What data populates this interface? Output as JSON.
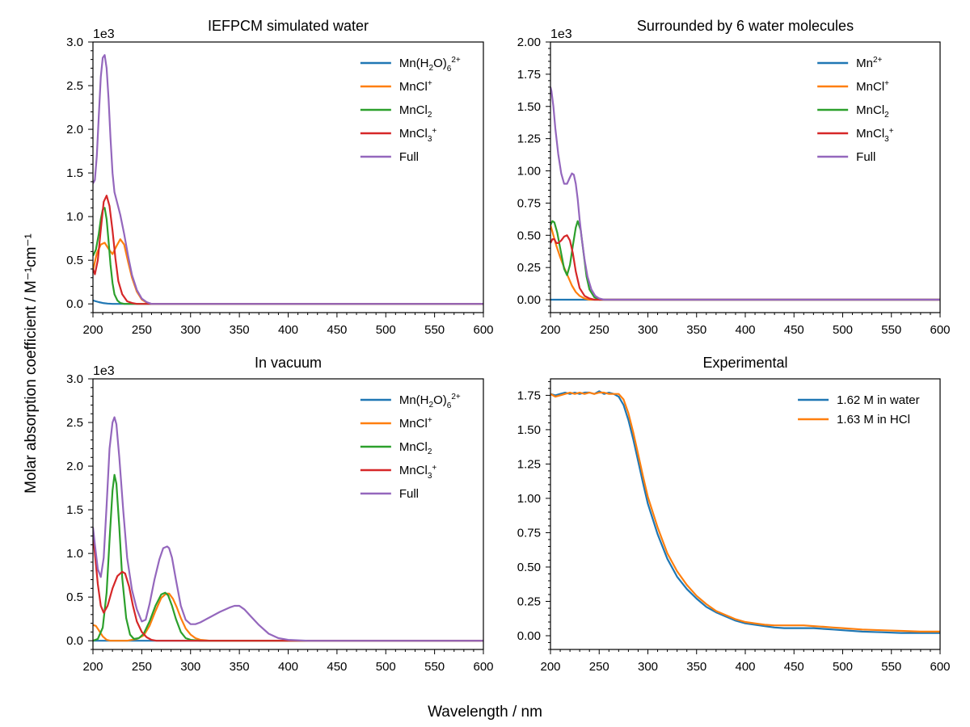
{
  "figure": {
    "ylabel": "Molar absorption coefficient / M⁻¹cm⁻¹",
    "xlabel": "Wavelength / nm"
  },
  "chart_data": [
    {
      "type": "line",
      "title": "IEFPCM simulated water",
      "xlim": [
        200,
        600
      ],
      "ylim": [
        -0.1,
        3.0
      ],
      "y_multiplier": "1e3",
      "x_ticks": [
        200,
        250,
        300,
        350,
        400,
        450,
        500,
        550,
        600
      ],
      "y_ticks": [
        0.0,
        0.5,
        1.0,
        1.5,
        2.0,
        2.5,
        3.0
      ],
      "y_tick_labels": [
        "0.0",
        "0.5",
        "1.0",
        "1.5",
        "2.0",
        "2.5",
        "3.0"
      ],
      "legend_position": "top-right",
      "series": [
        {
          "name": "Mn(H2O)6 2+",
          "color": "#1f77b4",
          "x": [
            200,
            203,
            206,
            210,
            215,
            220,
            240,
            300,
            600
          ],
          "y": [
            0.04,
            0.03,
            0.02,
            0.01,
            0.004,
            0.0,
            0.0,
            0.0,
            0.0
          ]
        },
        {
          "name": "MnCl+",
          "color": "#ff7f0e",
          "x": [
            200,
            204,
            208,
            212,
            216,
            220,
            224,
            228,
            232,
            236,
            240,
            245,
            250,
            255,
            260,
            300,
            600
          ],
          "y": [
            0.38,
            0.58,
            0.68,
            0.7,
            0.63,
            0.57,
            0.66,
            0.74,
            0.68,
            0.48,
            0.3,
            0.14,
            0.05,
            0.015,
            0.0,
            0.0,
            0.0
          ]
        },
        {
          "name": "MnCl2",
          "color": "#2ca02c",
          "x": [
            200,
            203,
            206,
            208,
            210,
            212,
            214,
            216,
            218,
            220,
            222,
            225,
            228,
            232,
            240,
            260,
            600
          ],
          "y": [
            0.55,
            0.62,
            0.8,
            0.97,
            1.08,
            1.1,
            0.97,
            0.72,
            0.45,
            0.24,
            0.11,
            0.04,
            0.01,
            0.0,
            0.0,
            0.0,
            0.0
          ]
        },
        {
          "name": "MnCl3+",
          "color": "#d62728",
          "x": [
            200,
            202,
            205,
            208,
            211,
            214,
            217,
            220,
            223,
            226,
            230,
            235,
            240,
            245,
            250,
            260,
            600
          ],
          "y": [
            0.4,
            0.34,
            0.5,
            0.85,
            1.17,
            1.24,
            1.12,
            0.84,
            0.52,
            0.26,
            0.11,
            0.03,
            0.01,
            0.0,
            0.0,
            0.0,
            0.0
          ]
        },
        {
          "name": "Full",
          "color": "#9467bd",
          "x": [
            200,
            202,
            204,
            206,
            208,
            210,
            212,
            214,
            216,
            218,
            220,
            222,
            225,
            228,
            232,
            236,
            240,
            245,
            250,
            255,
            260,
            270,
            300,
            600
          ],
          "y": [
            1.38,
            1.42,
            1.7,
            2.15,
            2.6,
            2.82,
            2.85,
            2.7,
            2.35,
            1.9,
            1.5,
            1.28,
            1.15,
            1.02,
            0.8,
            0.55,
            0.33,
            0.16,
            0.06,
            0.02,
            0.0,
            0.0,
            0.0,
            0.0
          ]
        }
      ]
    },
    {
      "type": "line",
      "title": "Surrounded by 6 water molecules",
      "xlim": [
        200,
        600
      ],
      "ylim": [
        -0.1,
        2.0
      ],
      "y_multiplier": "1e3",
      "x_ticks": [
        200,
        250,
        300,
        350,
        400,
        450,
        500,
        550,
        600
      ],
      "y_ticks": [
        0.0,
        0.25,
        0.5,
        0.75,
        1.0,
        1.25,
        1.5,
        1.75,
        2.0
      ],
      "y_tick_labels": [
        "0.00",
        "0.25",
        "0.50",
        "0.75",
        "1.00",
        "1.25",
        "1.50",
        "1.75",
        "2.00"
      ],
      "legend_position": "top-right",
      "series": [
        {
          "name": "Mn2+",
          "color": "#1f77b4",
          "x": [
            200,
            250,
            600
          ],
          "y": [
            0.0,
            0.0,
            0.0
          ]
        },
        {
          "name": "MnCl+",
          "color": "#ff7f0e",
          "x": [
            200,
            203,
            206,
            210,
            214,
            218,
            222,
            226,
            230,
            235,
            240,
            250,
            600
          ],
          "y": [
            0.58,
            0.5,
            0.42,
            0.33,
            0.25,
            0.18,
            0.11,
            0.06,
            0.03,
            0.01,
            0.0,
            0.0,
            0.0
          ]
        },
        {
          "name": "MnCl2",
          "color": "#2ca02c",
          "x": [
            200,
            202,
            204,
            207,
            210,
            214,
            217,
            220,
            223,
            226,
            228,
            231,
            234,
            237,
            240,
            245,
            250,
            260,
            600
          ],
          "y": [
            0.58,
            0.61,
            0.6,
            0.52,
            0.4,
            0.24,
            0.19,
            0.27,
            0.42,
            0.56,
            0.61,
            0.54,
            0.36,
            0.18,
            0.08,
            0.02,
            0.0,
            0.0,
            0.0
          ]
        },
        {
          "name": "MnCl3+",
          "color": "#d62728",
          "x": [
            200,
            202,
            204,
            206,
            208,
            211,
            214,
            217,
            220,
            223,
            226,
            230,
            235,
            240,
            245,
            250,
            600
          ],
          "y": [
            0.44,
            0.47,
            0.47,
            0.44,
            0.44,
            0.46,
            0.49,
            0.5,
            0.46,
            0.36,
            0.22,
            0.09,
            0.03,
            0.01,
            0.0,
            0.0,
            0.0
          ]
        },
        {
          "name": "Full",
          "color": "#9467bd",
          "x": [
            200,
            201,
            203,
            205,
            208,
            211,
            214,
            217,
            220,
            222,
            224,
            226,
            228,
            230,
            232,
            235,
            238,
            242,
            246,
            250,
            255,
            260,
            600
          ],
          "y": [
            1.65,
            1.62,
            1.5,
            1.33,
            1.13,
            0.98,
            0.9,
            0.9,
            0.95,
            0.98,
            0.97,
            0.9,
            0.78,
            0.62,
            0.48,
            0.31,
            0.18,
            0.08,
            0.03,
            0.01,
            0.0,
            0.0,
            0.0
          ]
        }
      ]
    },
    {
      "type": "line",
      "title": "In vacuum",
      "xlim": [
        200,
        600
      ],
      "ylim": [
        -0.1,
        3.0
      ],
      "y_multiplier": "1e3",
      "x_ticks": [
        200,
        250,
        300,
        350,
        400,
        450,
        500,
        550,
        600
      ],
      "y_ticks": [
        0.0,
        0.5,
        1.0,
        1.5,
        2.0,
        2.5,
        3.0
      ],
      "y_tick_labels": [
        "0.0",
        "0.5",
        "1.0",
        "1.5",
        "2.0",
        "2.5",
        "3.0"
      ],
      "legend_position": "top-right",
      "series": [
        {
          "name": "Mn(H2O)6 2+",
          "color": "#1f77b4",
          "x": [
            200,
            250,
            600
          ],
          "y": [
            0.0,
            0.0,
            0.0
          ]
        },
        {
          "name": "MnCl+",
          "color": "#ff7f0e",
          "x": [
            200,
            203,
            206,
            210,
            214,
            218,
            225,
            235,
            245,
            252,
            258,
            264,
            270,
            275,
            278,
            282,
            286,
            290,
            295,
            300,
            305,
            310,
            320,
            600
          ],
          "y": [
            0.18,
            0.17,
            0.12,
            0.05,
            0.01,
            0.0,
            0.0,
            0.0,
            0.02,
            0.06,
            0.17,
            0.34,
            0.49,
            0.54,
            0.54,
            0.48,
            0.38,
            0.26,
            0.14,
            0.07,
            0.03,
            0.01,
            0.0,
            0.0
          ]
        },
        {
          "name": "MnCl2",
          "color": "#2ca02c",
          "x": [
            200,
            205,
            210,
            214,
            217,
            220,
            222,
            224,
            227,
            230,
            234,
            238,
            242,
            247,
            252,
            258,
            264,
            270,
            274,
            277,
            281,
            285,
            290,
            295,
            300,
            310,
            600
          ],
          "y": [
            0.0,
            0.02,
            0.15,
            0.55,
            1.15,
            1.72,
            1.9,
            1.8,
            1.3,
            0.72,
            0.26,
            0.07,
            0.02,
            0.03,
            0.08,
            0.22,
            0.4,
            0.53,
            0.55,
            0.52,
            0.4,
            0.25,
            0.1,
            0.03,
            0.01,
            0.0,
            0.0
          ]
        },
        {
          "name": "MnCl3+",
          "color": "#d62728",
          "x": [
            200,
            202,
            205,
            208,
            211,
            215,
            220,
            225,
            230,
            233,
            237,
            241,
            245,
            250,
            255,
            260,
            265,
            270,
            280,
            600
          ],
          "y": [
            1.22,
            1.0,
            0.65,
            0.4,
            0.32,
            0.4,
            0.6,
            0.74,
            0.79,
            0.77,
            0.62,
            0.4,
            0.22,
            0.1,
            0.04,
            0.01,
            0.0,
            0.0,
            0.0,
            0.0
          ]
        },
        {
          "name": "Full",
          "color": "#9467bd",
          "x": [
            200,
            202,
            205,
            208,
            211,
            214,
            217,
            220,
            222,
            224,
            227,
            231,
            235,
            240,
            245,
            250,
            254,
            258,
            263,
            268,
            272,
            276,
            278,
            281,
            285,
            290,
            295,
            300,
            305,
            310,
            320,
            330,
            340,
            345,
            350,
            355,
            360,
            370,
            380,
            390,
            400,
            420,
            450,
            500,
            600
          ],
          "y": [
            1.3,
            1.1,
            0.82,
            0.73,
            0.95,
            1.55,
            2.2,
            2.5,
            2.56,
            2.48,
            2.1,
            1.5,
            0.95,
            0.58,
            0.36,
            0.22,
            0.24,
            0.42,
            0.7,
            0.93,
            1.06,
            1.08,
            1.06,
            0.95,
            0.7,
            0.4,
            0.24,
            0.19,
            0.19,
            0.21,
            0.27,
            0.33,
            0.38,
            0.4,
            0.4,
            0.36,
            0.3,
            0.18,
            0.08,
            0.03,
            0.01,
            0.0,
            0.0,
            0.0,
            0.0
          ]
        }
      ]
    },
    {
      "type": "line",
      "title": "Experimental",
      "xlim": [
        200,
        600
      ],
      "ylim": [
        -0.1,
        1.87
      ],
      "x_ticks": [
        200,
        250,
        300,
        350,
        400,
        450,
        500,
        550,
        600
      ],
      "y_ticks": [
        0.0,
        0.25,
        0.5,
        0.75,
        1.0,
        1.25,
        1.5,
        1.75
      ],
      "y_tick_labels": [
        "0.00",
        "0.25",
        "0.50",
        "0.75",
        "1.00",
        "1.25",
        "1.50",
        "1.75"
      ],
      "legend_position": "top-right",
      "series": [
        {
          "name": "1.62 M in water",
          "color": "#1f77b4",
          "x": [
            200,
            205,
            210,
            215,
            220,
            225,
            230,
            235,
            240,
            245,
            250,
            255,
            260,
            265,
            270,
            275,
            280,
            285,
            290,
            295,
            300,
            310,
            320,
            330,
            340,
            350,
            360,
            370,
            380,
            390,
            400,
            410,
            420,
            430,
            440,
            450,
            460,
            470,
            480,
            490,
            500,
            520,
            540,
            560,
            580,
            600
          ],
          "y": [
            1.76,
            1.75,
            1.76,
            1.77,
            1.76,
            1.77,
            1.76,
            1.77,
            1.77,
            1.76,
            1.78,
            1.76,
            1.77,
            1.76,
            1.74,
            1.68,
            1.57,
            1.43,
            1.27,
            1.11,
            0.96,
            0.74,
            0.56,
            0.43,
            0.34,
            0.27,
            0.21,
            0.17,
            0.14,
            0.11,
            0.09,
            0.08,
            0.07,
            0.06,
            0.055,
            0.055,
            0.055,
            0.055,
            0.05,
            0.045,
            0.04,
            0.03,
            0.025,
            0.02,
            0.02,
            0.02
          ]
        },
        {
          "name": "1.63 M in HCl",
          "color": "#ff7f0e",
          "x": [
            200,
            205,
            210,
            215,
            220,
            225,
            230,
            235,
            240,
            245,
            250,
            255,
            260,
            265,
            270,
            275,
            280,
            285,
            290,
            295,
            300,
            310,
            320,
            330,
            340,
            350,
            360,
            370,
            380,
            390,
            400,
            410,
            420,
            430,
            440,
            450,
            460,
            470,
            480,
            490,
            500,
            520,
            540,
            560,
            580,
            600
          ],
          "y": [
            1.76,
            1.74,
            1.75,
            1.76,
            1.77,
            1.76,
            1.77,
            1.76,
            1.77,
            1.76,
            1.77,
            1.77,
            1.76,
            1.76,
            1.76,
            1.72,
            1.62,
            1.48,
            1.32,
            1.16,
            1.01,
            0.79,
            0.6,
            0.47,
            0.37,
            0.29,
            0.23,
            0.18,
            0.15,
            0.12,
            0.1,
            0.09,
            0.08,
            0.075,
            0.075,
            0.075,
            0.075,
            0.07,
            0.065,
            0.06,
            0.055,
            0.045,
            0.04,
            0.035,
            0.03,
            0.03
          ]
        }
      ]
    }
  ]
}
